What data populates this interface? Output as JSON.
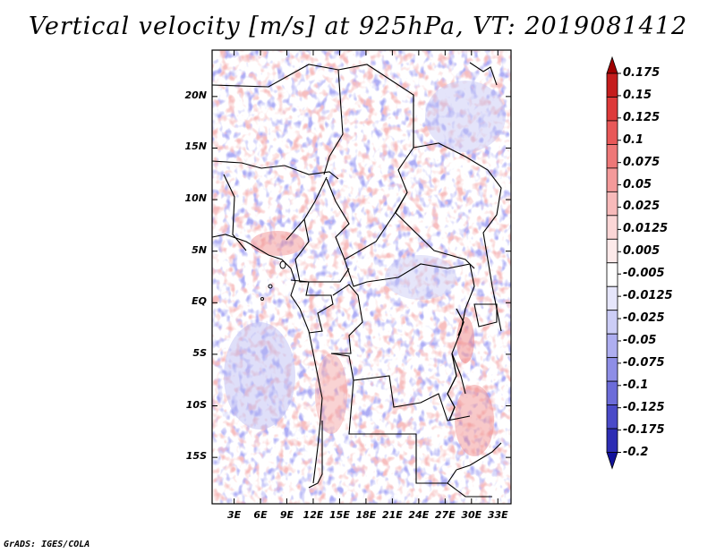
{
  "title": "Vertical velocity [m/s] at 925hPa, VT: 2019081412",
  "footer": "GrADS: IGES/COLA",
  "map": {
    "lat_ticks": [
      "20N",
      "15N",
      "10N",
      "5N",
      "EQ",
      "5S",
      "10S",
      "15S"
    ],
    "lat_values": [
      20,
      15,
      10,
      5,
      0,
      -5,
      -10,
      -15
    ],
    "lon_ticks": [
      "3E",
      "6E",
      "9E",
      "12E",
      "15E",
      "18E",
      "21E",
      "24E",
      "27E",
      "30E",
      "33E"
    ],
    "lon_values": [
      3,
      6,
      9,
      12,
      15,
      18,
      21,
      24,
      27,
      30,
      33
    ],
    "extent": {
      "lon_min": 0.5,
      "lon_max": 34.5,
      "lat_min": -19.5,
      "lat_max": 24.5
    }
  },
  "colorbar": {
    "labels": [
      "0.175",
      "0.15",
      "0.125",
      "0.1",
      "0.075",
      "0.05",
      "0.025",
      "0.0125",
      "0.005",
      "-0.005",
      "-0.0125",
      "-0.025",
      "-0.05",
      "-0.075",
      "-0.1",
      "-0.125",
      "-0.175",
      "-0.2"
    ],
    "colors": [
      "#a00000",
      "#c51d1d",
      "#dd3a3a",
      "#e85858",
      "#ee7878",
      "#f49a9a",
      "#f8baba",
      "#fbd6d6",
      "#fdeaea",
      "#ffffff",
      "#e6e6fb",
      "#cccdf6",
      "#aeaef0",
      "#8e8ee6",
      "#6c6cd9",
      "#4a4ac8",
      "#2d2db4",
      "#12129a"
    ]
  }
}
